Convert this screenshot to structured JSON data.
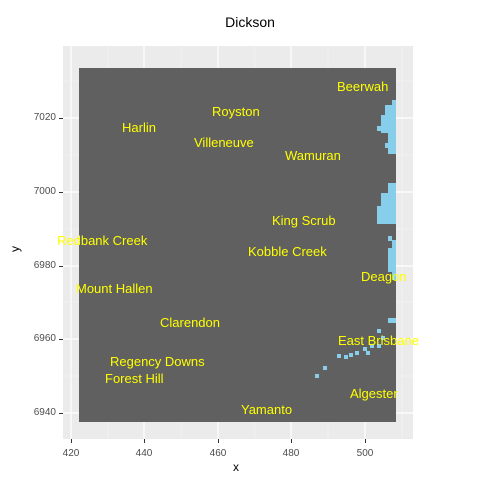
{
  "title": "Dickson",
  "axes": {
    "xlabel": "x",
    "ylabel": "y",
    "xticks": [
      "420",
      "440",
      "460",
      "480",
      "500"
    ],
    "yticks": [
      "7020",
      "7000",
      "6980",
      "6960",
      "6940"
    ]
  },
  "colors": {
    "panel_background": "#ebebeb",
    "raster_fill": "#606060",
    "water": "#87ceeb",
    "label_color": "#ffff00"
  },
  "places": [
    {
      "name": "Beerwah",
      "x": 503,
      "y": 7028
    },
    {
      "name": "Royston",
      "x": 463,
      "y": 7021
    },
    {
      "name": "Harlin",
      "x": 439,
      "y": 7017
    },
    {
      "name": "Villeneuve",
      "x": 461,
      "y": 7013
    },
    {
      "name": "Wamuran",
      "x": 486,
      "y": 7009
    },
    {
      "name": "King Scrub",
      "x": 484,
      "y": 6992
    },
    {
      "name": "Redbank Creek",
      "x": 430,
      "y": 6987
    },
    {
      "name": "Kobble Creek",
      "x": 479,
      "y": 6984
    },
    {
      "name": "Deagon",
      "x": 506,
      "y": 6976
    },
    {
      "name": "Mount Hallen",
      "x": 433,
      "y": 6973
    },
    {
      "name": "Clarendon",
      "x": 453,
      "y": 6963
    },
    {
      "name": "East Brisbane",
      "x": 504,
      "y": 6959
    },
    {
      "name": "Regency Downs",
      "x": 444,
      "y": 6952
    },
    {
      "name": "Forest Hill",
      "x": 439,
      "y": 6949
    },
    {
      "name": "Algester",
      "x": 503,
      "y": 6944
    },
    {
      "name": "Yamanto",
      "x": 474,
      "y": 6940
    }
  ]
}
